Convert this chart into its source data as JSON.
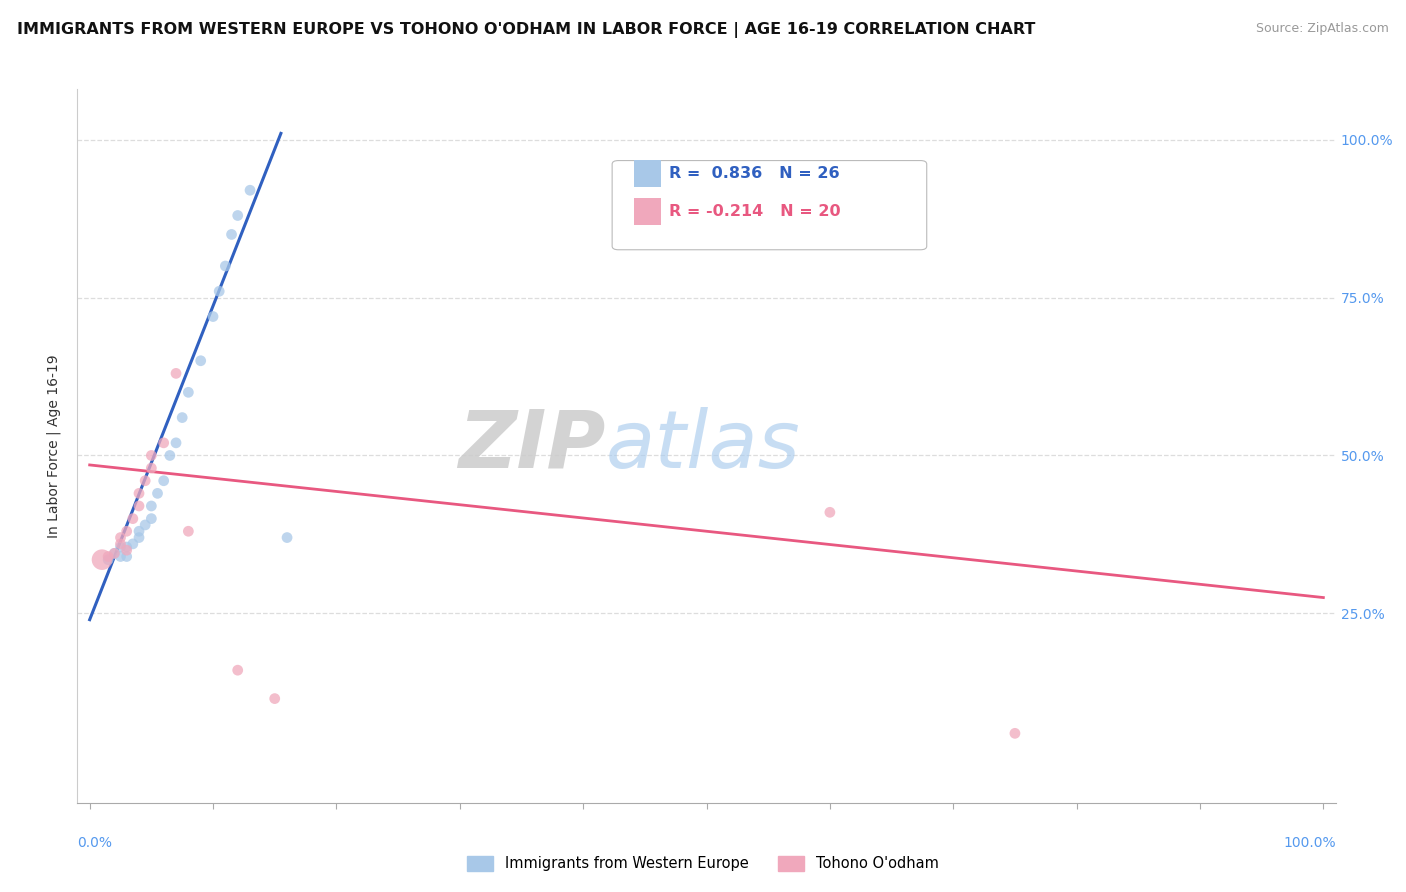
{
  "title": "IMMIGRANTS FROM WESTERN EUROPE VS TOHONO O'ODHAM IN LABOR FORCE | AGE 16-19 CORRELATION CHART",
  "source": "Source: ZipAtlas.com",
  "ylabel": "In Labor Force | Age 16-19",
  "xlim": [
    -0.01,
    1.01
  ],
  "ylim": [
    -0.05,
    1.08
  ],
  "xtick_vals": [
    0,
    0.1,
    0.2,
    0.3,
    0.4,
    0.5,
    0.6,
    0.7,
    0.8,
    0.9,
    1.0
  ],
  "ytick_vals": [
    0.25,
    0.5,
    0.75,
    1.0
  ],
  "right_ytick_labels": [
    "25.0%",
    "50.0%",
    "75.0%",
    "100.0%"
  ],
  "right_ytick_vals": [
    0.25,
    0.5,
    0.75,
    1.0
  ],
  "blue_color": "#A8C8E8",
  "pink_color": "#F0A8BC",
  "blue_line_color": "#3060C0",
  "pink_line_color": "#E85880",
  "watermark_zip": "ZIP",
  "watermark_atlas": "atlas",
  "legend_r_blue": "R =  0.836",
  "legend_n_blue": "N = 26",
  "legend_r_pink": "R = -0.214",
  "legend_n_pink": "N = 20",
  "legend_label_blue": "Immigrants from Western Europe",
  "legend_label_pink": "Tohono O'odham",
  "blue_scatter_x": [
    0.015,
    0.02,
    0.025,
    0.025,
    0.03,
    0.03,
    0.035,
    0.04,
    0.04,
    0.045,
    0.05,
    0.05,
    0.055,
    0.06,
    0.065,
    0.07,
    0.075,
    0.08,
    0.09,
    0.1,
    0.105,
    0.11,
    0.115,
    0.12,
    0.13,
    0.16
  ],
  "blue_scatter_y": [
    0.335,
    0.345,
    0.34,
    0.355,
    0.34,
    0.355,
    0.36,
    0.37,
    0.38,
    0.39,
    0.4,
    0.42,
    0.44,
    0.46,
    0.5,
    0.52,
    0.56,
    0.6,
    0.65,
    0.72,
    0.76,
    0.8,
    0.85,
    0.88,
    0.92,
    0.37
  ],
  "blue_scatter_size": [
    60,
    60,
    60,
    60,
    60,
    60,
    60,
    60,
    60,
    60,
    60,
    60,
    60,
    60,
    60,
    60,
    60,
    60,
    60,
    60,
    60,
    60,
    60,
    60,
    60,
    60
  ],
  "pink_scatter_x": [
    0.01,
    0.015,
    0.02,
    0.025,
    0.025,
    0.03,
    0.03,
    0.035,
    0.04,
    0.04,
    0.045,
    0.05,
    0.05,
    0.06,
    0.07,
    0.08,
    0.12,
    0.15,
    0.6,
    0.75
  ],
  "pink_scatter_y": [
    0.335,
    0.34,
    0.345,
    0.36,
    0.37,
    0.35,
    0.38,
    0.4,
    0.42,
    0.44,
    0.46,
    0.48,
    0.5,
    0.52,
    0.63,
    0.38,
    0.16,
    0.115,
    0.41,
    0.06
  ],
  "pink_scatter_size": [
    220,
    60,
    60,
    60,
    60,
    60,
    60,
    60,
    60,
    60,
    60,
    60,
    60,
    60,
    60,
    60,
    60,
    60,
    60,
    60
  ],
  "blue_line_x0": 0.0,
  "blue_line_x1": 0.155,
  "blue_line_y0": 0.24,
  "blue_line_y1": 1.01,
  "pink_line_x0": 0.0,
  "pink_line_x1": 1.0,
  "pink_line_y0": 0.485,
  "pink_line_y1": 0.275,
  "background_color": "#FFFFFF",
  "grid_color": "#DDDDDD",
  "title_fontsize": 11.5,
  "axis_label_fontsize": 10,
  "tick_fontsize": 9,
  "source_fontsize": 9,
  "right_tick_color": "#5599EE"
}
